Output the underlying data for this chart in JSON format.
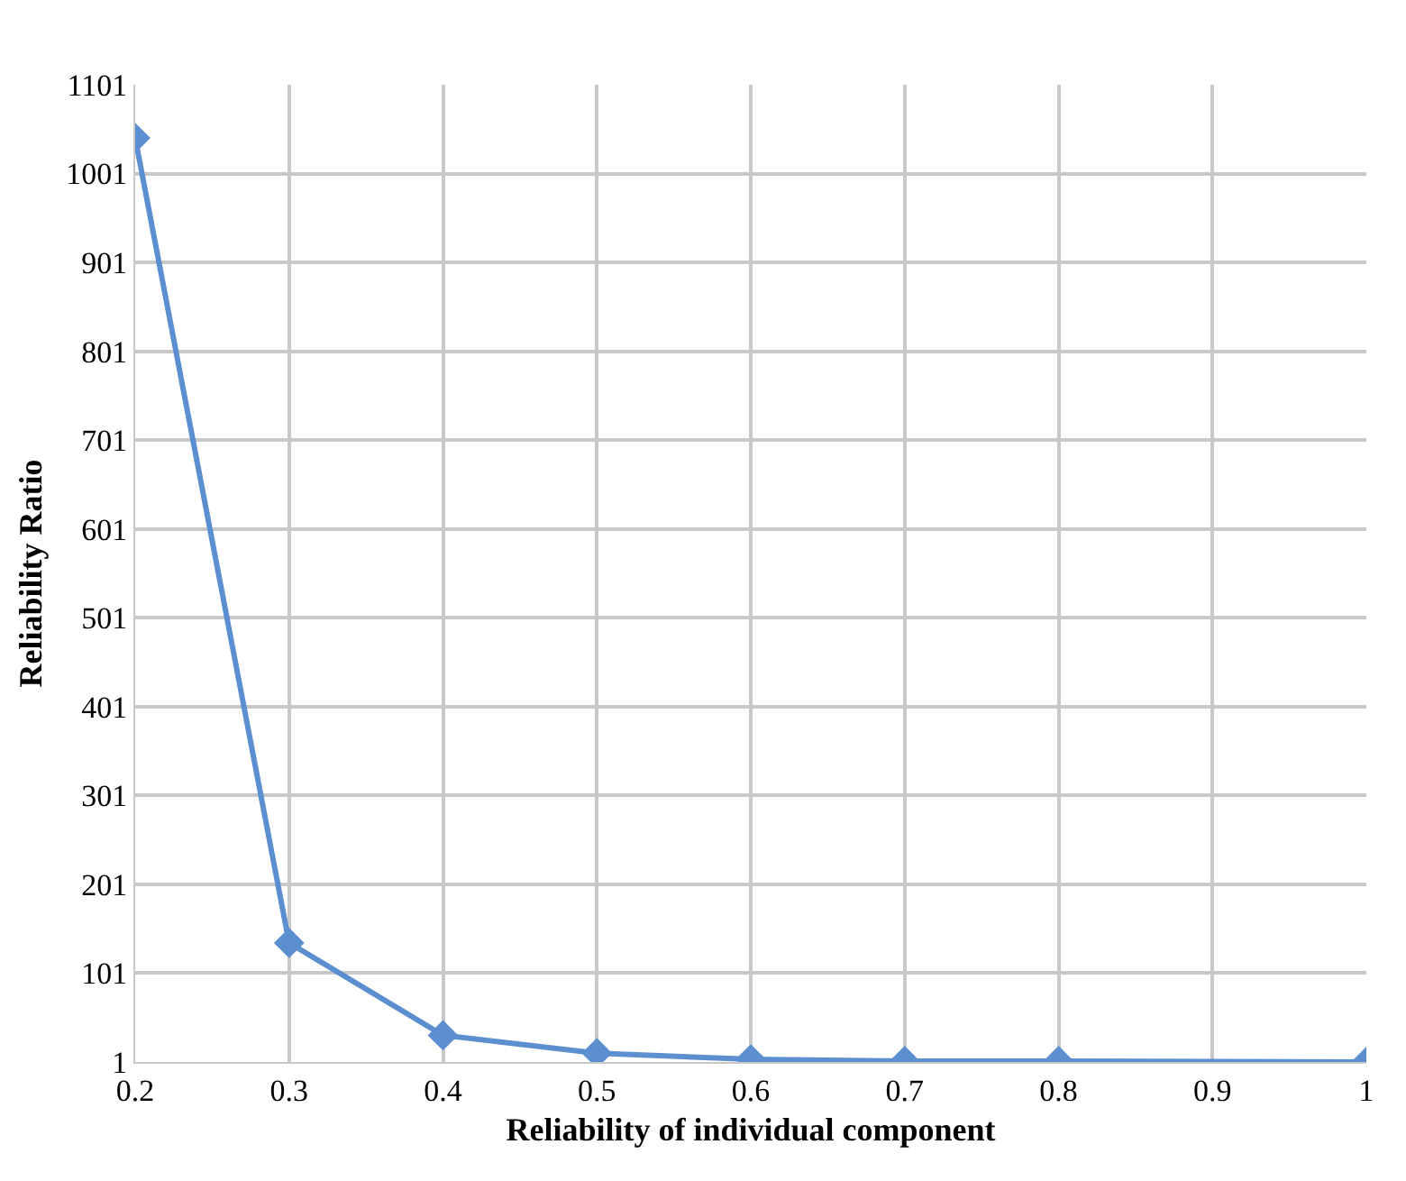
{
  "chart_data": {
    "type": "line",
    "xlabel": "Reliability of individual component",
    "ylabel": "Reliability Ratio",
    "x": [
      0.2,
      0.3,
      0.4,
      0.5,
      0.6,
      0.7,
      0.8,
      1
    ],
    "series": [
      {
        "color": "#5b8fd0",
        "values": [
          1041,
          135,
          31,
          11,
          4,
          2,
          2,
          1
        ]
      }
    ],
    "xlim": [
      0.2,
      1
    ],
    "xticks": [
      0.2,
      0.3,
      0.4,
      0.5,
      0.6,
      0.7,
      0.8,
      0.9,
      1
    ],
    "ylim": [
      1,
      1101
    ],
    "yticks": [
      1,
      101,
      201,
      301,
      401,
      501,
      601,
      701,
      801,
      901,
      1001,
      1101
    ],
    "grid": true,
    "marker": "diamond",
    "line_style": "solid",
    "legend": false
  }
}
